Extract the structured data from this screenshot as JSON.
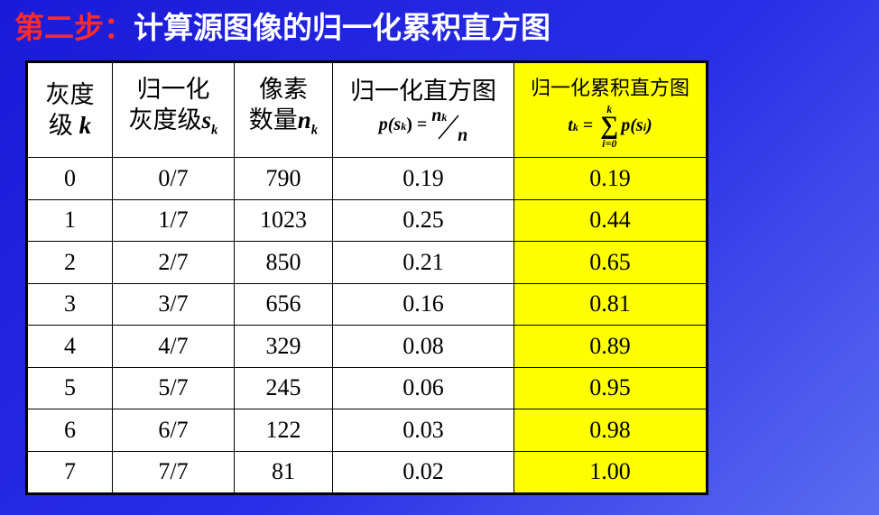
{
  "title": {
    "step": "第二步：",
    "text": "计算源图像的归一化累积直方图"
  },
  "table": {
    "header": [
      {
        "line1": "灰度",
        "line2": "级 ",
        "var": "k"
      },
      {
        "line1": "归一化",
        "line2": "灰度级",
        "var": "s",
        "sub": "k"
      },
      {
        "line1": "像素",
        "line2": "数量",
        "var": "n",
        "sub": "k"
      },
      {
        "line1": "归一化直方图",
        "formula": [
          "p(s",
          "k",
          ") =",
          "n",
          "k",
          "n"
        ]
      },
      {
        "line1": "归一化累积直方图",
        "formula": [
          "t",
          "k",
          "=",
          "k",
          "∑",
          "i=0",
          "p(s",
          "i",
          ")"
        ]
      }
    ],
    "rows": [
      [
        "0",
        "0/7",
        "790",
        "0.19",
        "0.19"
      ],
      [
        "1",
        "1/7",
        "1023",
        "0.25",
        "0.44"
      ],
      [
        "2",
        "2/7",
        "850",
        "0.21",
        "0.65"
      ],
      [
        "3",
        "3/7",
        "656",
        "0.16",
        "0.81"
      ],
      [
        "4",
        "4/7",
        "329",
        "0.08",
        "0.89"
      ],
      [
        "5",
        "5/7",
        "245",
        "0.06",
        "0.95"
      ],
      [
        "6",
        "6/7",
        "122",
        "0.03",
        "0.98"
      ],
      [
        "7",
        "7/7",
        "81",
        "0.02",
        "1.00"
      ]
    ]
  }
}
